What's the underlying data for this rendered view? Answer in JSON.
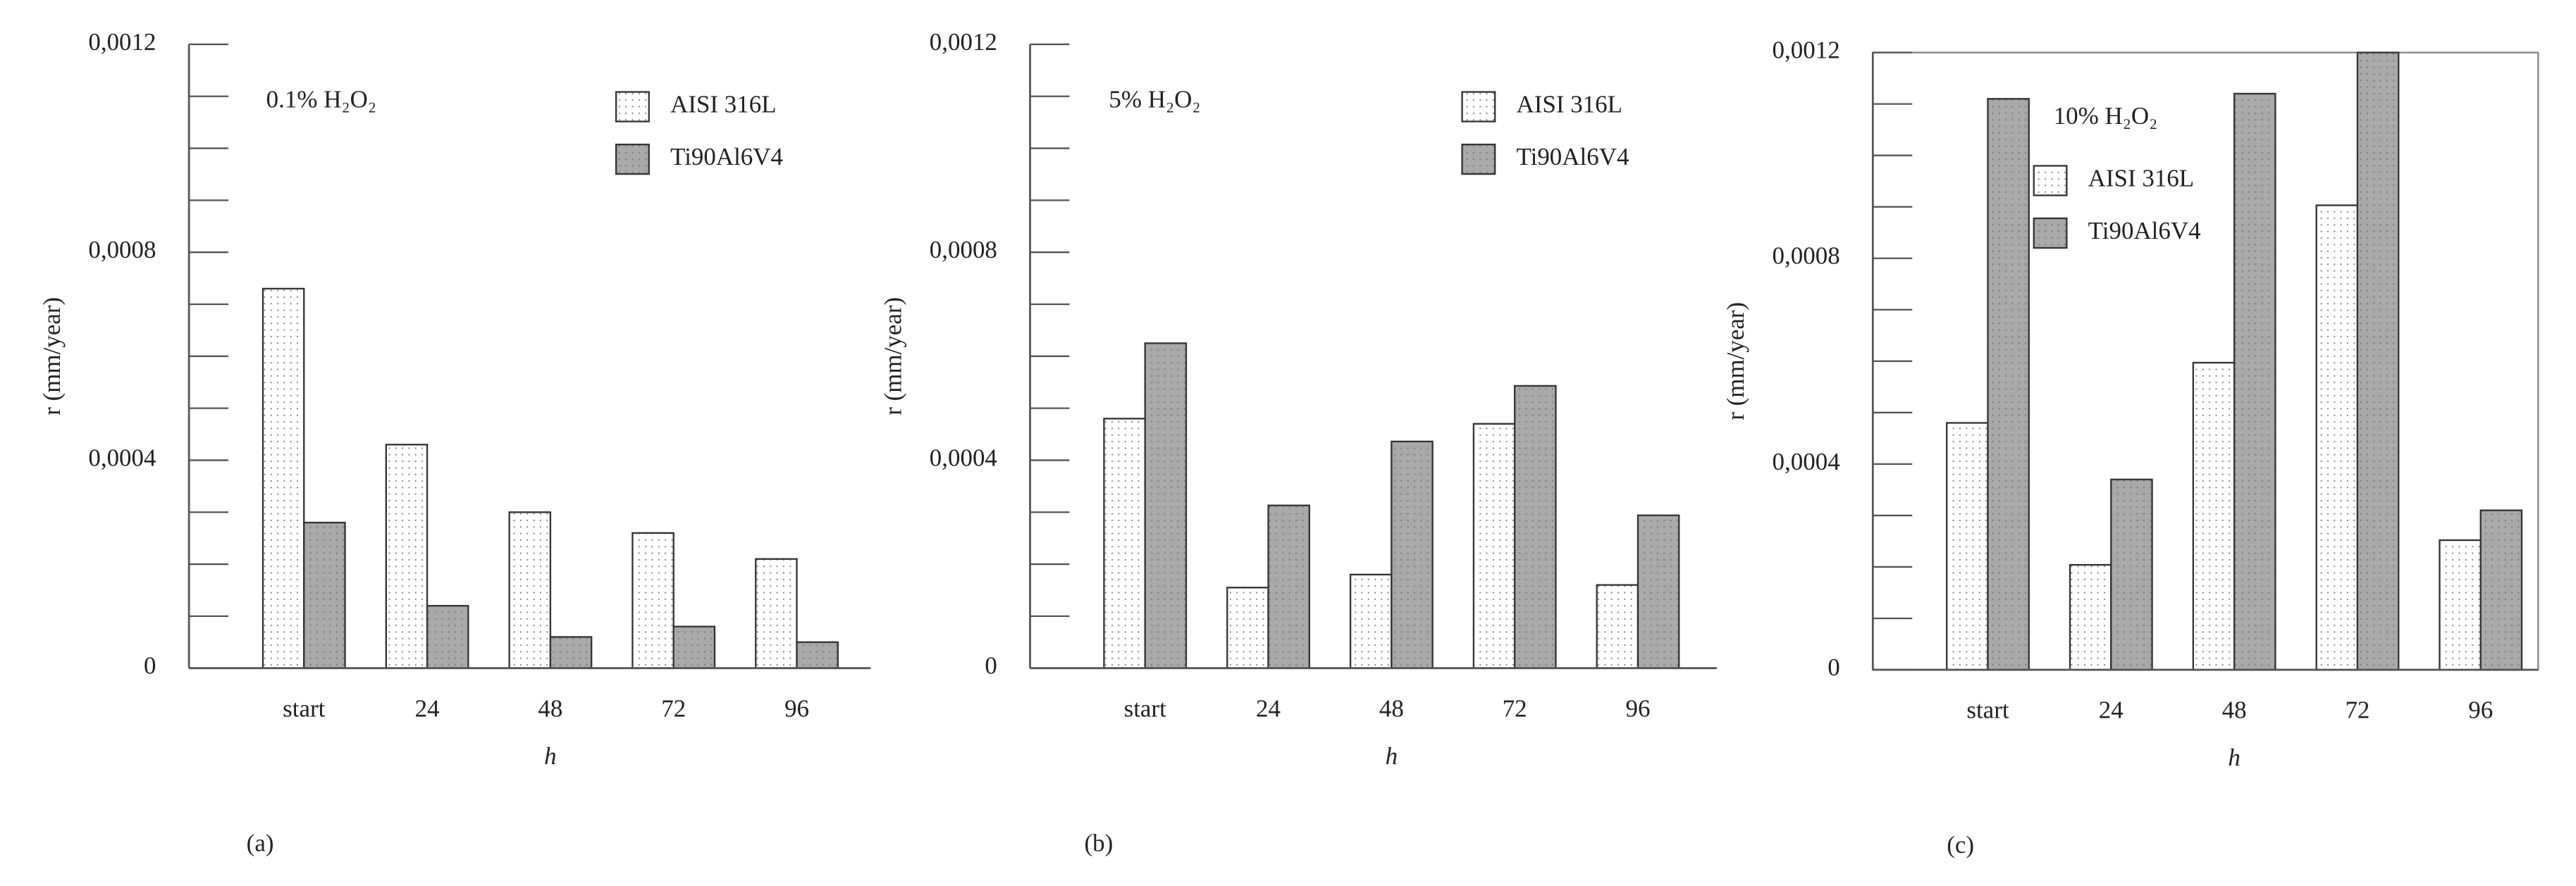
{
  "chart_data": [
    {
      "type": "bar",
      "annotation": "0.1% H₂O₂",
      "panel_label": "(a)",
      "ylabel": "r (mm/year)",
      "xlabel": "h",
      "categories": [
        "start",
        "24",
        "48",
        "72",
        "96"
      ],
      "series": [
        {
          "name": "AISI 316L",
          "color": "#ffffff",
          "values": [
            0.00073,
            0.00043,
            0.0003,
            0.00026,
            0.00021
          ]
        },
        {
          "name": "Ti90Al6V4",
          "color": "#a9a9a9",
          "values": [
            0.00028,
            0.00012,
            6e-05,
            8e-05,
            5e-05
          ]
        }
      ],
      "ylim": [
        0,
        0.0012
      ],
      "yticks": [
        0,
        {
          "value": 0.0004,
          "label": "0,0004"
        },
        {
          "value": 0.0008,
          "label": "0,0008"
        },
        {
          "value": 0.0012,
          "label": "0,0012"
        }
      ],
      "yminorticks": [
        0.0001,
        0.0002,
        0.0003,
        0.0005,
        0.0006,
        0.0007,
        0.0009,
        0.001,
        0.0011
      ],
      "legend": "upper right",
      "frame": false
    },
    {
      "type": "bar",
      "annotation": "5% H₂O₂",
      "panel_label": "(b)",
      "ylabel": "r (mm/year)",
      "xlabel": "h",
      "categories": [
        "start",
        "24",
        "48",
        "72",
        "96"
      ],
      "series": [
        {
          "name": "AISI 316L",
          "color": "#ffffff",
          "values": [
            0.00048,
            0.000155,
            0.00018,
            0.00047,
            0.00016
          ]
        },
        {
          "name": "Ti90Al6V4",
          "color": "#a9a9a9",
          "values": [
            0.000625,
            0.000313,
            0.000436,
            0.000543,
            0.000294
          ]
        }
      ],
      "ylim": [
        0,
        0.0012
      ],
      "yticks": [
        0,
        {
          "value": 0.0004,
          "label": "0,0004"
        },
        {
          "value": 0.0008,
          "label": "0,0008"
        },
        {
          "value": 0.0012,
          "label": "0,0012"
        }
      ],
      "yminorticks": [
        0.0001,
        0.0002,
        0.0003,
        0.0005,
        0.0006,
        0.0007,
        0.0009,
        0.001,
        0.0011
      ],
      "legend": "upper right",
      "frame": false
    },
    {
      "type": "bar",
      "annotation": "10% H₂O₂",
      "panel_label": "(c)",
      "ylabel": "r (mm/year)",
      "xlabel": "h",
      "categories": [
        "start",
        "24",
        "48",
        "72",
        "96"
      ],
      "series": [
        {
          "name": "AISI 316L",
          "color": "#ffffff",
          "values": [
            0.00048,
            0.000204,
            0.000597,
            0.000903,
            0.000252
          ]
        },
        {
          "name": "Ti90Al6V4",
          "color": "#a9a9a9",
          "values": [
            0.00111,
            0.00037,
            0.00112,
            0.0012,
            0.00031
          ]
        }
      ],
      "ylim": [
        0,
        0.0012
      ],
      "yticks": [
        0,
        {
          "value": 0.0004,
          "label": "0,0004"
        },
        {
          "value": 0.0008,
          "label": "0,0008"
        },
        {
          "value": 0.0012,
          "label": "0,0012"
        }
      ],
      "yminorticks": [
        0.0001,
        0.0002,
        0.0003,
        0.0005,
        0.0006,
        0.0007,
        0.0009,
        0.001,
        0.0011
      ],
      "legend": "upper center",
      "frame": true
    }
  ]
}
